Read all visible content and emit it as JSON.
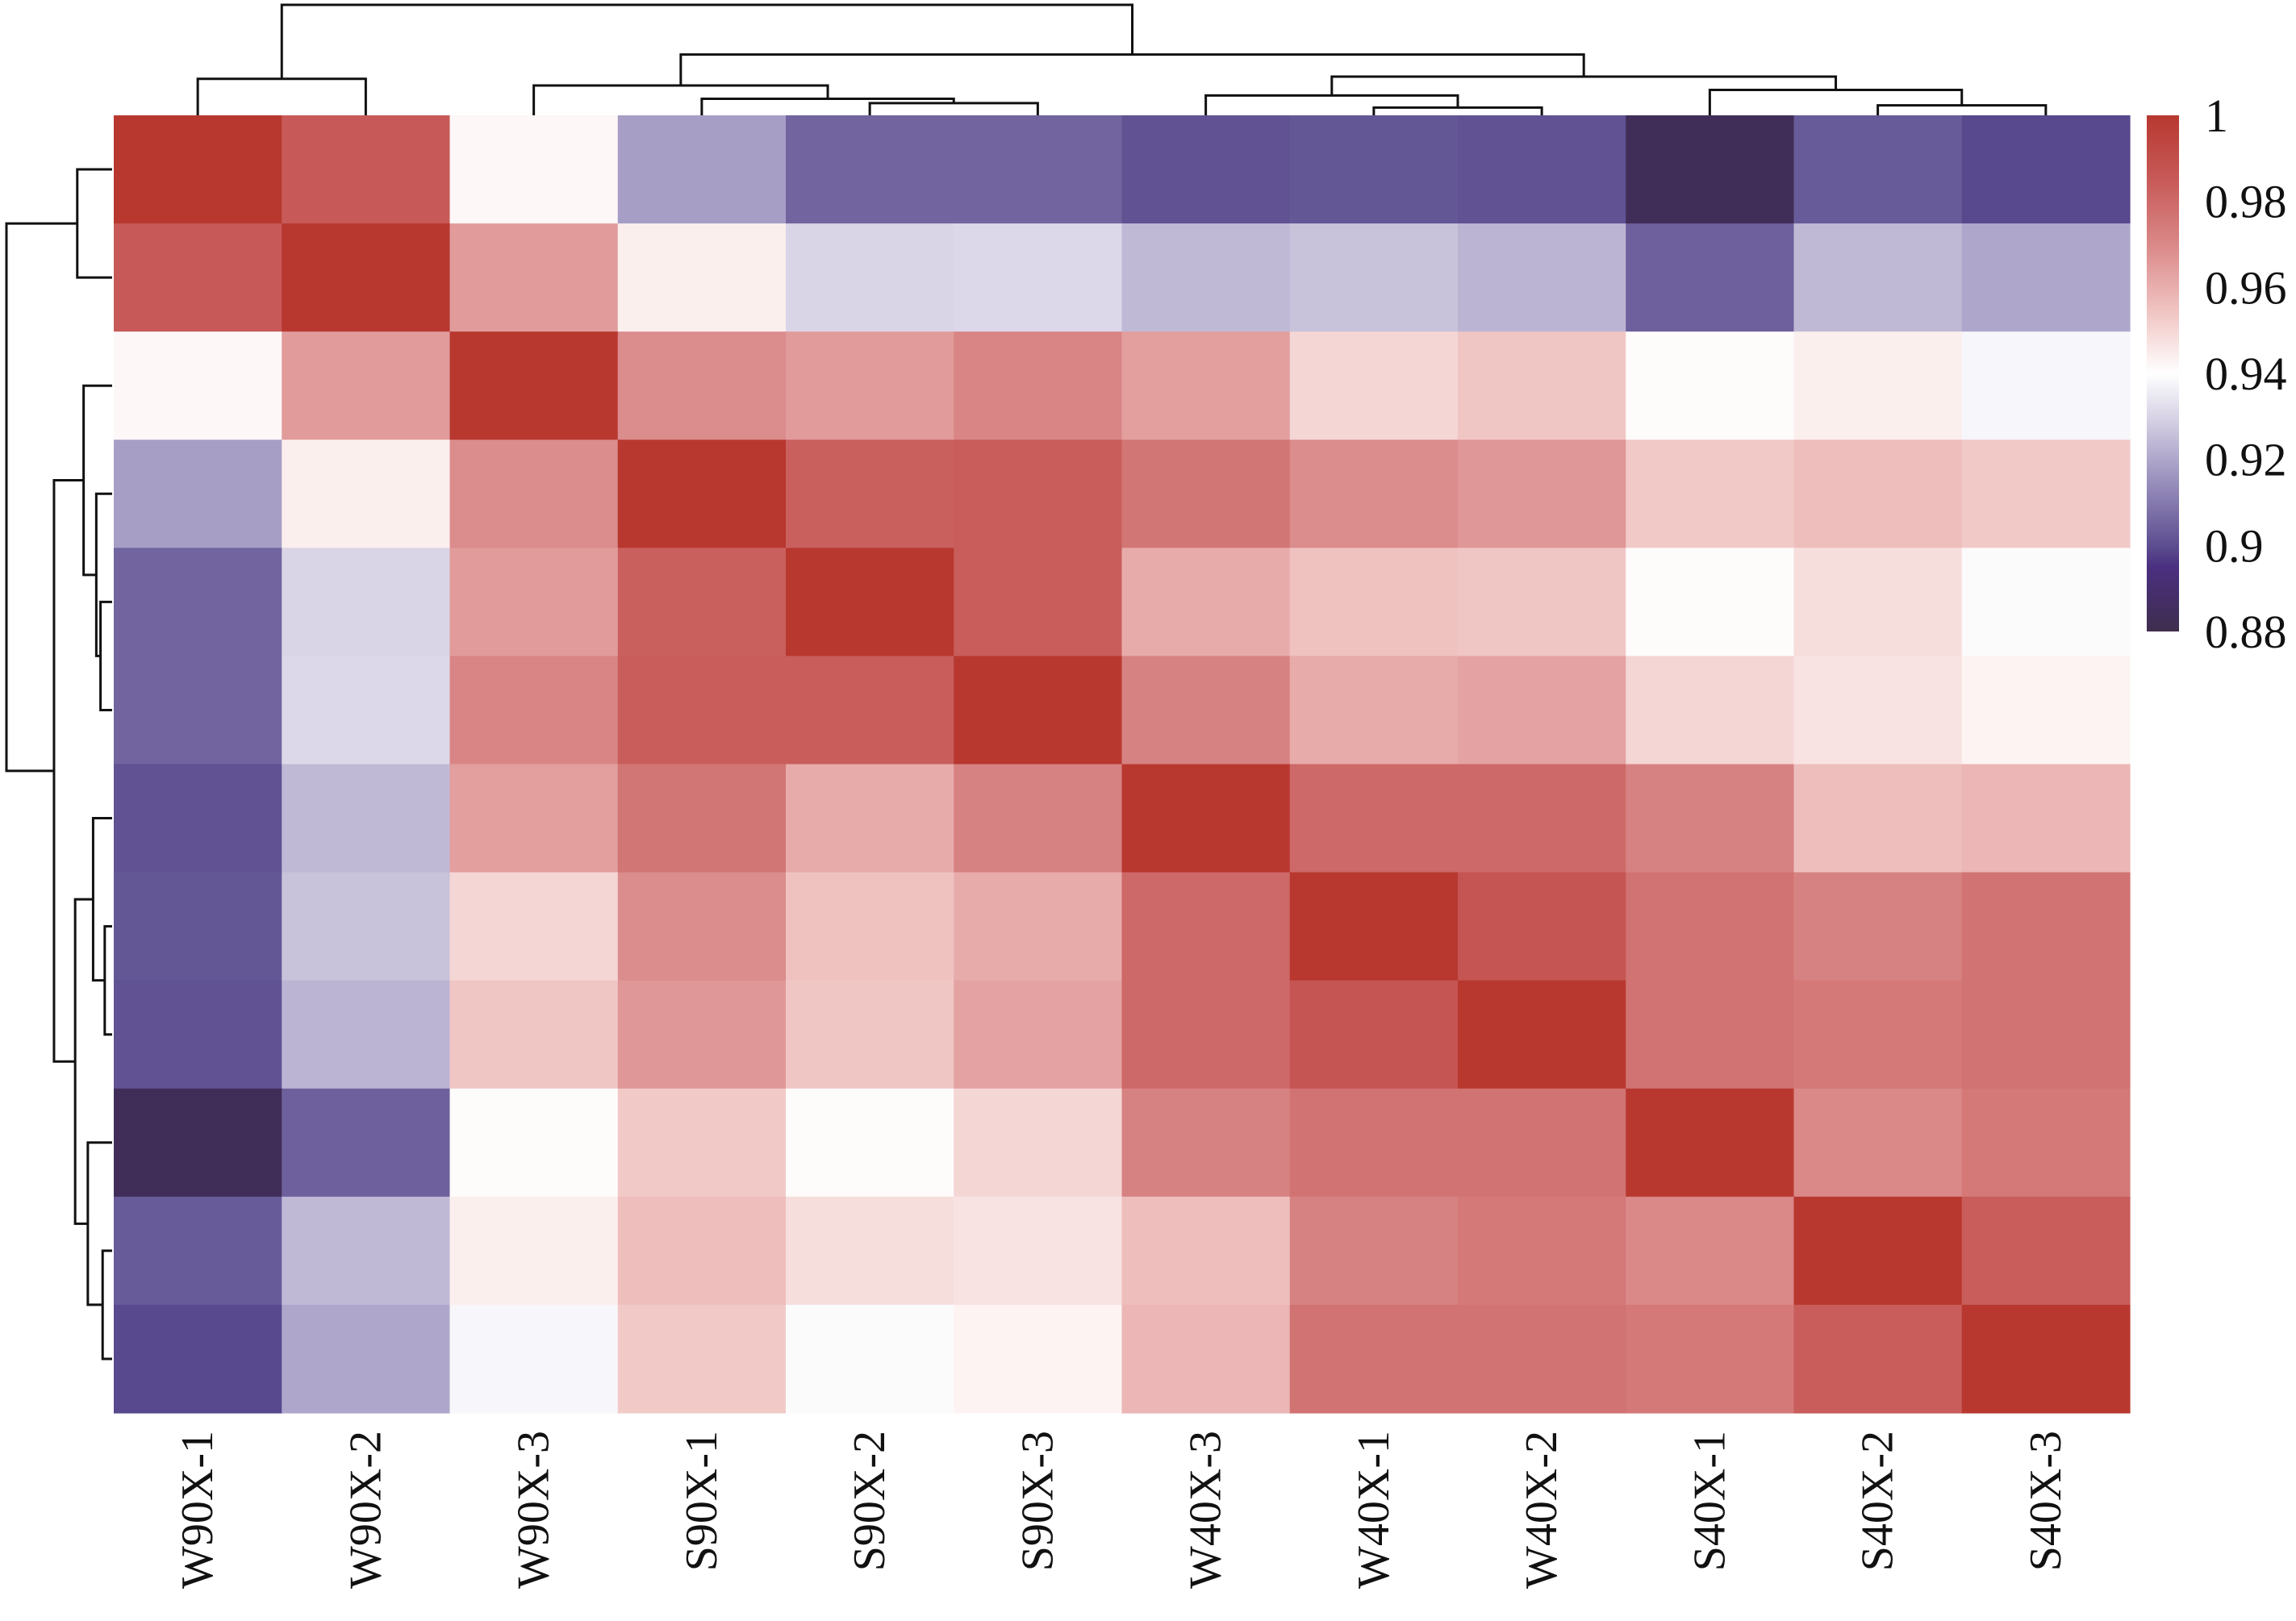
{
  "chart_data": {
    "type": "heatmap",
    "title": "",
    "xlabel": "",
    "ylabel": "",
    "labels": [
      "W90X-1",
      "W90X-2",
      "W90X-3",
      "S90X-1",
      "S90X-2",
      "S90X-3",
      "W40X-3",
      "W40X-1",
      "W40X-2",
      "S40X-1",
      "S40X-2",
      "S40X-3"
    ],
    "matrix": [
      [
        1.0,
        0.985,
        0.942,
        0.918,
        0.905,
        0.905,
        0.901,
        0.902,
        0.901,
        0.883,
        0.903,
        0.899
      ],
      [
        0.985,
        1.0,
        0.965,
        0.944,
        0.93,
        0.931,
        0.924,
        0.926,
        0.923,
        0.904,
        0.924,
        0.92
      ],
      [
        0.942,
        0.965,
        1.0,
        0.969,
        0.965,
        0.971,
        0.964,
        0.95,
        0.954,
        0.941,
        0.944,
        0.938
      ],
      [
        0.918,
        0.944,
        0.969,
        1.0,
        0.983,
        0.984,
        0.976,
        0.969,
        0.966,
        0.953,
        0.956,
        0.953
      ],
      [
        0.905,
        0.93,
        0.965,
        0.983,
        1.0,
        0.984,
        0.961,
        0.955,
        0.954,
        0.941,
        0.948,
        0.939
      ],
      [
        0.905,
        0.931,
        0.971,
        0.984,
        0.984,
        1.0,
        0.972,
        0.961,
        0.963,
        0.95,
        0.947,
        0.943
      ],
      [
        0.901,
        0.924,
        0.964,
        0.976,
        0.961,
        0.972,
        1.0,
        0.98,
        0.98,
        0.972,
        0.956,
        0.958
      ],
      [
        0.902,
        0.926,
        0.95,
        0.969,
        0.955,
        0.961,
        0.98,
        1.0,
        0.987,
        0.977,
        0.972,
        0.977
      ],
      [
        0.901,
        0.923,
        0.954,
        0.966,
        0.954,
        0.963,
        0.98,
        0.987,
        1.0,
        0.977,
        0.975,
        0.977
      ],
      [
        0.883,
        0.904,
        0.941,
        0.953,
        0.941,
        0.95,
        0.972,
        0.977,
        0.977,
        1.0,
        0.97,
        0.975
      ],
      [
        0.903,
        0.924,
        0.944,
        0.956,
        0.948,
        0.947,
        0.956,
        0.972,
        0.975,
        0.97,
        1.0,
        0.984
      ],
      [
        0.899,
        0.92,
        0.938,
        0.953,
        0.939,
        0.943,
        0.958,
        0.977,
        0.977,
        0.975,
        0.984,
        1.0
      ]
    ],
    "colorbar": {
      "range": [
        0.88,
        1.0
      ],
      "ticks": [
        "1",
        "0.98",
        "0.96",
        "0.94",
        "0.92",
        "0.9",
        "0.88"
      ],
      "tick_values": [
        1.0,
        0.98,
        0.96,
        0.94,
        0.92,
        0.9,
        0.88
      ],
      "stops": [
        {
          "value": 0.88,
          "color": "#3f2e4e"
        },
        {
          "value": 0.895,
          "color": "#4a2f80"
        },
        {
          "value": 0.9,
          "color": "#5c4e90"
        },
        {
          "value": 0.915,
          "color": "#9a90bd"
        },
        {
          "value": 0.93,
          "color": "#d9d4e6"
        },
        {
          "value": 0.94,
          "color": "#ffffff"
        },
        {
          "value": 0.955,
          "color": "#efc2c0"
        },
        {
          "value": 0.97,
          "color": "#da8888"
        },
        {
          "value": 0.985,
          "color": "#c75a58"
        },
        {
          "value": 1.0,
          "color": "#b83830"
        }
      ],
      "placement": "right"
    },
    "dendrogram": {
      "method_note": "merge heights on relative 0-1 distance scale",
      "merges": [
        {
          "id": "m1",
          "children": [
            4,
            5
          ],
          "height": 0.11
        },
        {
          "id": "m2",
          "children": [
            3,
            "m1"
          ],
          "height": 0.15
        },
        {
          "id": "m3",
          "children": [
            2,
            "m2"
          ],
          "height": 0.27
        },
        {
          "id": "m4",
          "children": [
            7,
            8
          ],
          "height": 0.07
        },
        {
          "id": "m5",
          "children": [
            6,
            "m4"
          ],
          "height": 0.18
        },
        {
          "id": "m6",
          "children": [
            10,
            11
          ],
          "height": 0.09
        },
        {
          "id": "m7",
          "children": [
            9,
            "m6"
          ],
          "height": 0.23
        },
        {
          "id": "m8",
          "children": [
            "m5",
            "m7"
          ],
          "height": 0.35
        },
        {
          "id": "m9",
          "children": [
            "m3",
            "m8"
          ],
          "height": 0.55
        },
        {
          "id": "m10",
          "children": [
            0,
            1
          ],
          "height": 0.33
        },
        {
          "id": "m11",
          "children": [
            "m10",
            "m9"
          ],
          "height": 1.0
        }
      ],
      "show_top": true,
      "show_left": true
    }
  }
}
